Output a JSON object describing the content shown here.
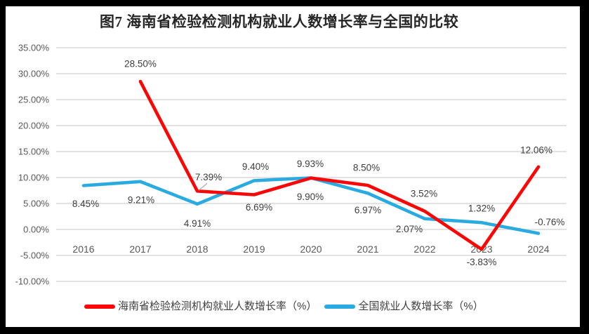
{
  "title": "图7 海南省检验检测机构就业人数增长率与全国的比较",
  "colors": {
    "frame": "#000000",
    "background": "#ffffff",
    "gridline": "#d9d9d9",
    "axis_text": "#595959",
    "label_text": "#3d3d3d",
    "hainan_red": "#fb0505",
    "national_blue": "#29abe2",
    "leader_gray": "#a6a6a6"
  },
  "chart_data": {
    "type": "line",
    "categories": [
      "2016",
      "2017",
      "2018",
      "2019",
      "2020",
      "2021",
      "2022",
      "2023",
      "2024"
    ],
    "ylim": [
      -10,
      35
    ],
    "ytick_step": 5,
    "yticks": [
      {
        "value": 35,
        "label": "35.00%"
      },
      {
        "value": 30,
        "label": "30.00%"
      },
      {
        "value": 25,
        "label": "25.00%"
      },
      {
        "value": 20,
        "label": "20.00%"
      },
      {
        "value": 15,
        "label": "15.00%"
      },
      {
        "value": 10,
        "label": "10.00%"
      },
      {
        "value": 5,
        "label": "5.00%"
      },
      {
        "value": 0,
        "label": "0.00%"
      },
      {
        "value": -5,
        "label": "-5.00%"
      },
      {
        "value": -10,
        "label": "-10.00%"
      }
    ],
    "grid": true,
    "legend_position": "bottom",
    "series": [
      {
        "name": "海南省检验检测机构就业人数增长率（%）",
        "color": "#fb0505",
        "values": [
          null,
          28.5,
          7.39,
          6.69,
          9.9,
          8.5,
          3.52,
          -3.83,
          12.06
        ],
        "labels": [
          null,
          "28.50%",
          "7.39%",
          "6.69%",
          "9.90%",
          "8.50%",
          "3.52%",
          "-3.83%",
          "12.06%"
        ],
        "label_offsets": [
          null,
          [
            0,
            -25
          ],
          [
            16,
            -20
          ],
          [
            7,
            18
          ],
          [
            -1,
            27
          ],
          [
            -2,
            -25
          ],
          [
            -1,
            -25
          ],
          [
            0,
            18
          ],
          [
            -3,
            -24
          ]
        ],
        "leader_index": 2
      },
      {
        "name": "全国就业人数增长率（%）",
        "color": "#29abe2",
        "values": [
          8.45,
          9.21,
          4.91,
          9.4,
          9.93,
          6.97,
          2.07,
          1.32,
          -0.76
        ],
        "labels": [
          "8.45%",
          "9.21%",
          "4.91%",
          "9.40%",
          "9.93%",
          "6.97%",
          "2.07%",
          "1.32%",
          "-0.76%"
        ],
        "label_offsets": [
          [
            3,
            26
          ],
          [
            1,
            26
          ],
          [
            0,
            28
          ],
          [
            2,
            -20
          ],
          [
            -1,
            -20
          ],
          [
            0,
            24
          ],
          [
            -22,
            15
          ],
          [
            0,
            -20
          ],
          [
            16,
            -16
          ]
        ]
      }
    ]
  },
  "legend": {
    "items": [
      {
        "label": "海南省检验检测机构就业人数增长率（%）",
        "color": "#fb0505"
      },
      {
        "label": "全国就业人数增长率（%）",
        "color": "#29abe2"
      }
    ]
  }
}
